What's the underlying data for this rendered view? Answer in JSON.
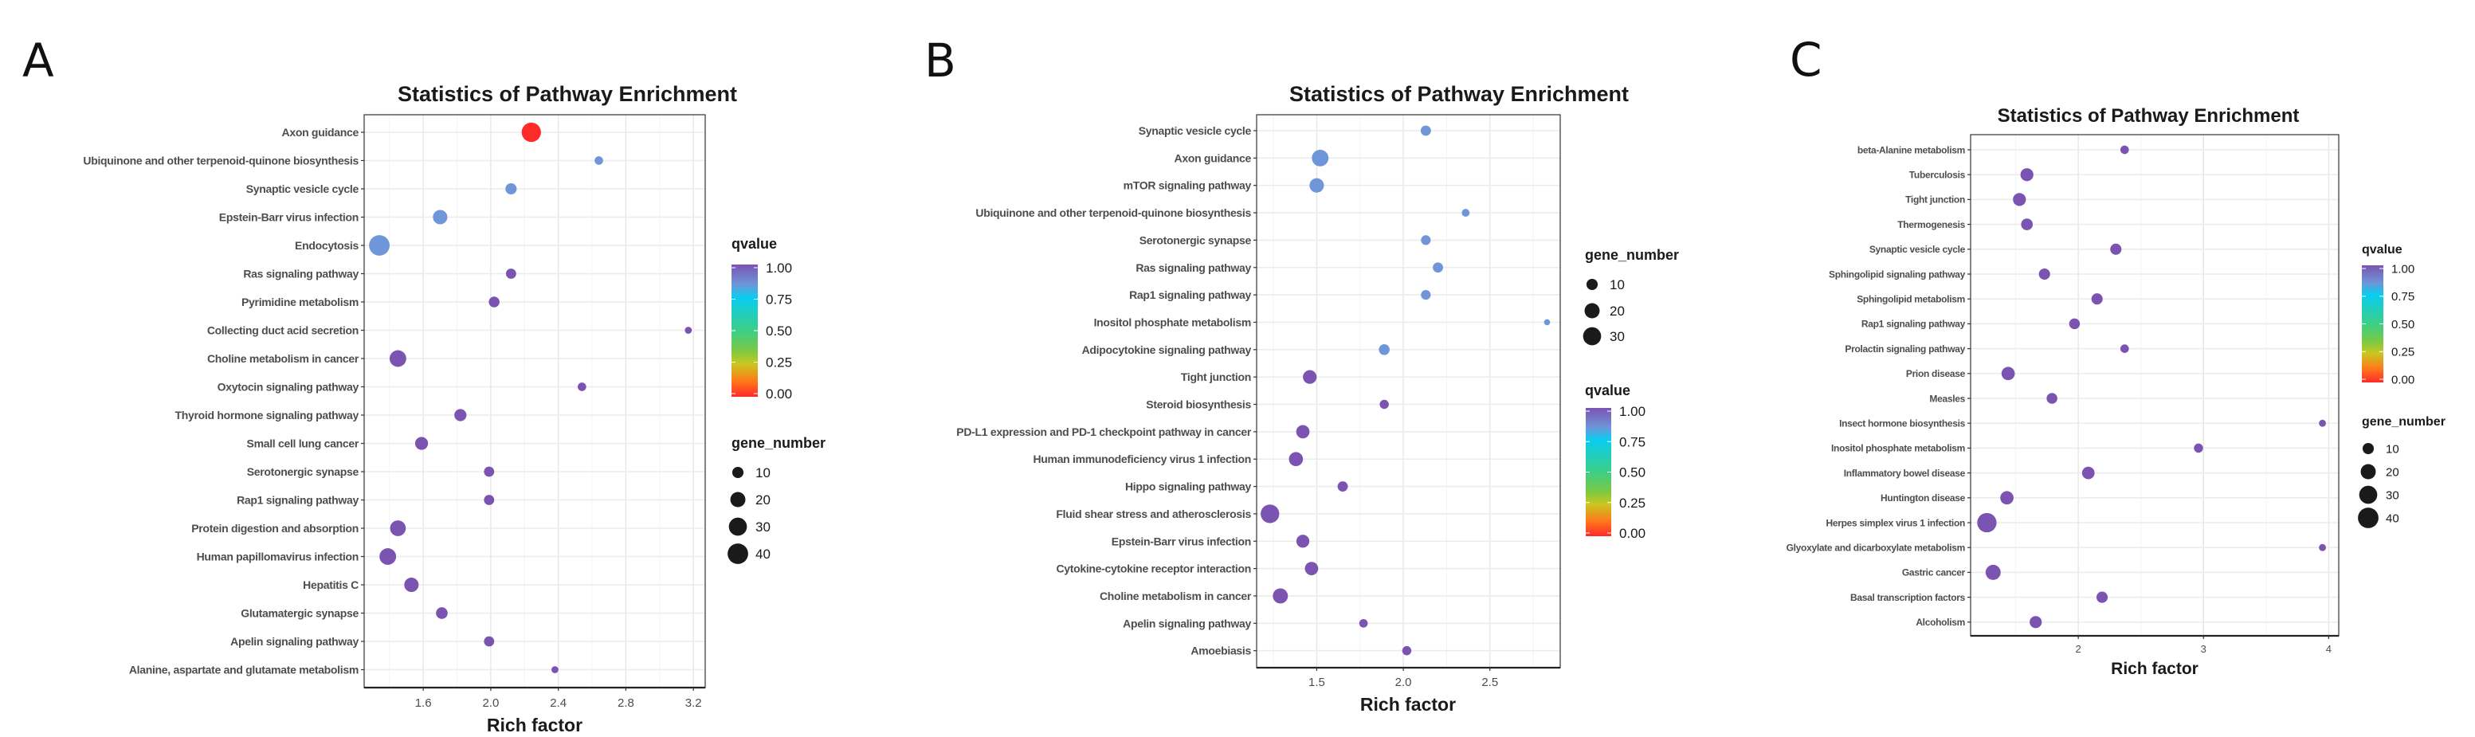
{
  "colors": {
    "q0": "#ff2a2a",
    "q_mid": "#6e96d8",
    "q1": "#7b53b1",
    "legend_dot": "#1a1a1a"
  },
  "chart_data": [
    {
      "panel_letter": "A",
      "type": "scatter",
      "title": "Statistics of Pathway Enrichment",
      "xlabel": "Rich factor",
      "ylabel": "",
      "xlim": [
        1.25,
        3.27
      ],
      "xticks": [
        1.6,
        2.0,
        2.4,
        2.8,
        3.2
      ],
      "xtick_labels": [
        "1.6",
        "2.0",
        "2.4",
        "2.8",
        "3.2"
      ],
      "grid": true,
      "legend_order": [
        "qvalue",
        "gene_number"
      ],
      "legend_placement": "right",
      "qvalue_legend": {
        "title": "qvalue",
        "labels": [
          "1.00",
          "0.75",
          "0.50",
          "0.25",
          "0.00"
        ]
      },
      "gene_legend": {
        "title": "gene_number",
        "values": [
          10,
          20,
          30,
          40
        ],
        "labels": [
          "10",
          "20",
          "30",
          "40"
        ]
      },
      "points": [
        {
          "pathway": "Axon guidance",
          "rich_factor": 2.24,
          "gene_number": 35,
          "qvalue": 0.0
        },
        {
          "pathway": "Ubiquinone and other terpenoid-quinone biosynthesis",
          "rich_factor": 2.64,
          "gene_number": 5,
          "qvalue": 0.85
        },
        {
          "pathway": "Synaptic vesicle cycle",
          "rich_factor": 2.12,
          "gene_number": 10,
          "qvalue": 0.85
        },
        {
          "pathway": "Epstein-Barr virus infection",
          "rich_factor": 1.7,
          "gene_number": 18,
          "qvalue": 0.85
        },
        {
          "pathway": "Endocytosis",
          "rich_factor": 1.34,
          "gene_number": 40,
          "qvalue": 0.85
        },
        {
          "pathway": "Ras signaling pathway",
          "rich_factor": 2.12,
          "gene_number": 8,
          "qvalue": 1.0
        },
        {
          "pathway": "Pyrimidine metabolism",
          "rich_factor": 2.02,
          "gene_number": 9,
          "qvalue": 1.0
        },
        {
          "pathway": "Collecting duct acid secretion",
          "rich_factor": 3.17,
          "gene_number": 3,
          "qvalue": 1.0
        },
        {
          "pathway": "Choline metabolism in cancer",
          "rich_factor": 1.45,
          "gene_number": 25,
          "qvalue": 1.0
        },
        {
          "pathway": "Oxytocin signaling pathway",
          "rich_factor": 2.54,
          "gene_number": 5,
          "qvalue": 1.0
        },
        {
          "pathway": "Thyroid hormone signaling pathway",
          "rich_factor": 1.82,
          "gene_number": 12,
          "qvalue": 1.0
        },
        {
          "pathway": "Small cell lung cancer",
          "rich_factor": 1.59,
          "gene_number": 14,
          "qvalue": 1.0
        },
        {
          "pathway": "Serotonergic synapse",
          "rich_factor": 1.99,
          "gene_number": 8,
          "qvalue": 1.0
        },
        {
          "pathway": "Rap1 signaling pathway",
          "rich_factor": 1.99,
          "gene_number": 8,
          "qvalue": 1.0
        },
        {
          "pathway": "Protein digestion and absorption",
          "rich_factor": 1.45,
          "gene_number": 22,
          "qvalue": 1.0
        },
        {
          "pathway": "Human papillomavirus infection",
          "rich_factor": 1.39,
          "gene_number": 25,
          "qvalue": 1.0
        },
        {
          "pathway": "Hepatitis C",
          "rich_factor": 1.53,
          "gene_number": 18,
          "qvalue": 1.0
        },
        {
          "pathway": "Glutamatergic synapse",
          "rich_factor": 1.71,
          "gene_number": 11,
          "qvalue": 1.0
        },
        {
          "pathway": "Apelin signaling pathway",
          "rich_factor": 1.99,
          "gene_number": 8,
          "qvalue": 1.0
        },
        {
          "pathway": "Alanine, aspartate and glutamate metabolism",
          "rich_factor": 2.38,
          "gene_number": 3,
          "qvalue": 1.0
        }
      ]
    },
    {
      "panel_letter": "B",
      "type": "scatter",
      "title": "Statistics of Pathway Enrichment",
      "xlabel": "Rich factor",
      "ylabel": "",
      "xlim": [
        1.153,
        2.906
      ],
      "xticks": [
        1.5,
        2.0,
        2.5
      ],
      "xtick_labels": [
        "1.5",
        "2.0",
        "2.5"
      ],
      "grid": true,
      "legend_order": [
        "gene_number",
        "qvalue"
      ],
      "legend_placement": "right",
      "qvalue_legend": {
        "title": "qvalue",
        "labels": [
          "1.00",
          "0.75",
          "0.50",
          "0.25",
          "0.00"
        ]
      },
      "gene_legend": {
        "title": "gene_number",
        "values": [
          10,
          20,
          30
        ],
        "labels": [
          "10",
          "20",
          "30"
        ]
      },
      "points": [
        {
          "pathway": "Synaptic vesicle cycle",
          "rich_factor": 2.13,
          "gene_number": 8,
          "qvalue": 0.85
        },
        {
          "pathway": "Axon guidance",
          "rich_factor": 1.52,
          "gene_number": 25,
          "qvalue": 0.85
        },
        {
          "pathway": "mTOR signaling pathway",
          "rich_factor": 1.5,
          "gene_number": 18,
          "qvalue": 0.85
        },
        {
          "pathway": "Ubiquinone and other terpenoid-quinone biosynthesis",
          "rich_factor": 2.36,
          "gene_number": 4,
          "qvalue": 0.85
        },
        {
          "pathway": "Serotonergic synapse",
          "rich_factor": 2.13,
          "gene_number": 7,
          "qvalue": 0.85
        },
        {
          "pathway": "Ras signaling pathway",
          "rich_factor": 2.2,
          "gene_number": 8,
          "qvalue": 0.85
        },
        {
          "pathway": "Rap1 signaling pathway",
          "rich_factor": 2.13,
          "gene_number": 7,
          "qvalue": 0.85
        },
        {
          "pathway": "Inositol phosphate metabolism",
          "rich_factor": 2.83,
          "gene_number": 2,
          "qvalue": 0.85
        },
        {
          "pathway": "Adipocytokine signaling pathway",
          "rich_factor": 1.89,
          "gene_number": 9,
          "qvalue": 0.85
        },
        {
          "pathway": "Tight junction",
          "rich_factor": 1.46,
          "gene_number": 16,
          "qvalue": 1.0
        },
        {
          "pathway": "Steroid biosynthesis",
          "rich_factor": 1.89,
          "gene_number": 6,
          "qvalue": 1.0
        },
        {
          "pathway": "PD-L1 expression and PD-1 checkpoint pathway in cancer",
          "rich_factor": 1.42,
          "gene_number": 15,
          "qvalue": 1.0
        },
        {
          "pathway": "Human immunodeficiency virus 1 infection",
          "rich_factor": 1.38,
          "gene_number": 17,
          "qvalue": 1.0
        },
        {
          "pathway": "Hippo signaling pathway",
          "rich_factor": 1.65,
          "gene_number": 8,
          "qvalue": 1.0
        },
        {
          "pathway": "Fluid shear stress and atherosclerosis",
          "rich_factor": 1.23,
          "gene_number": 32,
          "qvalue": 1.0
        },
        {
          "pathway": "Epstein-Barr virus infection",
          "rich_factor": 1.42,
          "gene_number": 14,
          "qvalue": 1.0
        },
        {
          "pathway": "Cytokine-cytokine receptor interaction",
          "rich_factor": 1.47,
          "gene_number": 15,
          "qvalue": 1.0
        },
        {
          "pathway": "Choline metabolism in cancer",
          "rich_factor": 1.29,
          "gene_number": 20,
          "qvalue": 1.0
        },
        {
          "pathway": "Apelin signaling pathway",
          "rich_factor": 1.77,
          "gene_number": 5,
          "qvalue": 1.0
        },
        {
          "pathway": "Amoebiasis",
          "rich_factor": 2.02,
          "gene_number": 6,
          "qvalue": 1.0
        }
      ]
    },
    {
      "panel_letter": "C",
      "type": "scatter",
      "title": "Statistics of Pathway Enrichment",
      "xlabel": "Rich factor",
      "ylabel": "",
      "xlim": [
        1.14,
        4.08
      ],
      "xticks": [
        2,
        3,
        4
      ],
      "xtick_labels": [
        "2",
        "3",
        "4"
      ],
      "grid": true,
      "legend_order": [
        "qvalue",
        "gene_number"
      ],
      "legend_placement": "right",
      "qvalue_legend": {
        "title": "qvalue",
        "labels": [
          "1.00",
          "0.75",
          "0.50",
          "0.25",
          "0.00"
        ]
      },
      "gene_legend": {
        "title": "gene_number",
        "values": [
          10,
          20,
          30,
          40
        ],
        "labels": [
          "10",
          "20",
          "30",
          "40"
        ]
      },
      "points": [
        {
          "pathway": "beta-Alanine metabolism",
          "rich_factor": 2.37,
          "gene_number": 5,
          "qvalue": 1.0
        },
        {
          "pathway": "Tuberculosis",
          "rich_factor": 1.59,
          "gene_number": 14,
          "qvalue": 1.0
        },
        {
          "pathway": "Tight junction",
          "rich_factor": 1.53,
          "gene_number": 14,
          "qvalue": 1.0
        },
        {
          "pathway": "Thermogenesis",
          "rich_factor": 1.59,
          "gene_number": 11,
          "qvalue": 1.0
        },
        {
          "pathway": "Synaptic vesicle cycle",
          "rich_factor": 2.3,
          "gene_number": 10,
          "qvalue": 1.0
        },
        {
          "pathway": "Sphingolipid signaling pathway",
          "rich_factor": 1.73,
          "gene_number": 10,
          "qvalue": 1.0
        },
        {
          "pathway": "Sphingolipid metabolism",
          "rich_factor": 2.15,
          "gene_number": 10,
          "qvalue": 1.0
        },
        {
          "pathway": "Rap1 signaling pathway",
          "rich_factor": 1.97,
          "gene_number": 9,
          "qvalue": 1.0
        },
        {
          "pathway": "Prolactin signaling pathway",
          "rich_factor": 2.37,
          "gene_number": 5,
          "qvalue": 1.0
        },
        {
          "pathway": "Prion disease",
          "rich_factor": 1.44,
          "gene_number": 15,
          "qvalue": 1.0
        },
        {
          "pathway": "Measles",
          "rich_factor": 1.79,
          "gene_number": 9,
          "qvalue": 1.0
        },
        {
          "pathway": "Insect hormone biosynthesis",
          "rich_factor": 3.95,
          "gene_number": 3,
          "qvalue": 1.0
        },
        {
          "pathway": "Inositol phosphate metabolism",
          "rich_factor": 2.96,
          "gene_number": 6,
          "qvalue": 1.0
        },
        {
          "pathway": "Inflammatory bowel disease",
          "rich_factor": 2.08,
          "gene_number": 13,
          "qvalue": 1.0
        },
        {
          "pathway": "Huntington disease",
          "rich_factor": 1.43,
          "gene_number": 15,
          "qvalue": 1.0
        },
        {
          "pathway": "Herpes simplex virus 1 infection",
          "rich_factor": 1.27,
          "gene_number": 35,
          "qvalue": 1.0
        },
        {
          "pathway": "Glyoxylate and dicarboxylate metabolism",
          "rich_factor": 3.95,
          "gene_number": 3,
          "qvalue": 1.0
        },
        {
          "pathway": "Gastric cancer",
          "rich_factor": 1.32,
          "gene_number": 20,
          "qvalue": 1.0
        },
        {
          "pathway": "Basal transcription factors",
          "rich_factor": 2.19,
          "gene_number": 10,
          "qvalue": 1.0
        },
        {
          "pathway": "Alcoholism",
          "rich_factor": 1.66,
          "gene_number": 12,
          "qvalue": 1.0
        }
      ]
    }
  ]
}
